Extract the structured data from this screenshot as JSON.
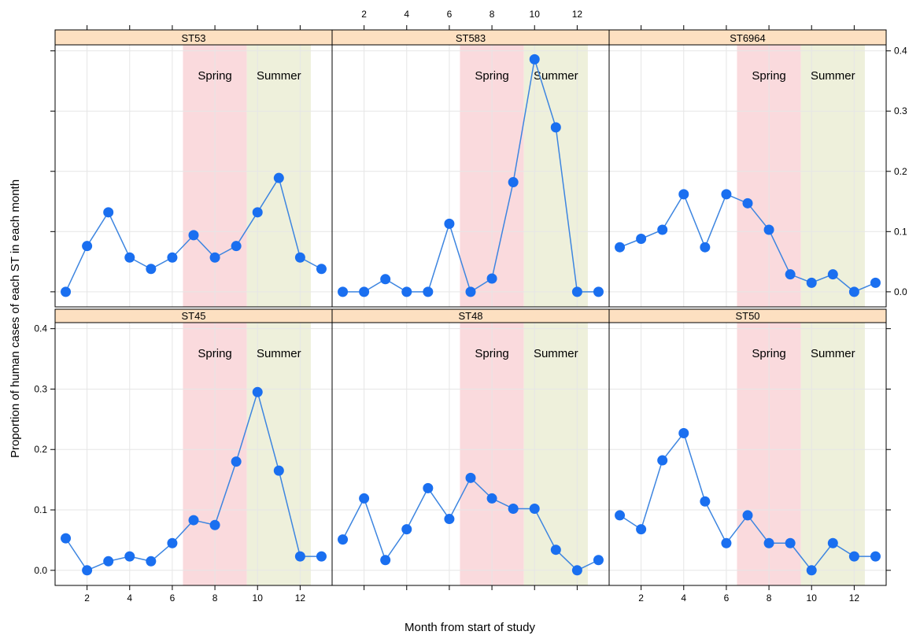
{
  "chart_data": {
    "type": "line",
    "layout": "lattice-3x2",
    "xlabel": "Month from start of study",
    "ylabel": "Proportion of human cases of each ST in each month",
    "xlim": [
      0.5,
      13.5
    ],
    "ylim": [
      -0.025,
      0.41
    ],
    "x_ticks": [
      2,
      4,
      6,
      8,
      10,
      12
    ],
    "x_tick_labels": [
      "2",
      "4",
      "6",
      "8",
      "10",
      "12"
    ],
    "y_ticks": [
      0.0,
      0.1,
      0.2,
      0.3,
      0.4
    ],
    "y_tick_labels": [
      "0.0",
      "0.1",
      "0.2",
      "0.3",
      "0.4"
    ],
    "grid": true,
    "colors": {
      "line": "#3d85e0",
      "point": "#1a6ff0",
      "strip": "#fde0c1",
      "spring": "#fadadd",
      "summer": "#eef0db",
      "grid": "#e6e6e6"
    },
    "seasons": [
      {
        "label": "Spring",
        "from": 6.5,
        "to": 9.5,
        "color": "#fadadd"
      },
      {
        "label": "Summer",
        "from": 9.5,
        "to": 12.5,
        "color": "#eef0db"
      }
    ],
    "x": [
      1,
      2,
      3,
      4,
      5,
      6,
      7,
      8,
      9,
      10,
      11,
      12,
      13
    ],
    "panels": [
      {
        "name": "ST53",
        "row": 0,
        "col": 0,
        "values": [
          0.0,
          0.076,
          0.132,
          0.057,
          0.038,
          0.057,
          0.094,
          0.057,
          0.076,
          0.132,
          0.189,
          0.057,
          0.038
        ]
      },
      {
        "name": "ST583",
        "row": 0,
        "col": 1,
        "values": [
          0.0,
          0.0,
          0.021,
          0.0,
          0.0,
          0.113,
          0.0,
          0.022,
          0.182,
          0.386,
          0.273,
          0.0,
          0.0
        ]
      },
      {
        "name": "ST6964",
        "row": 0,
        "col": 2,
        "values": [
          0.074,
          0.088,
          0.103,
          0.162,
          0.074,
          0.162,
          0.147,
          0.103,
          0.029,
          0.015,
          0.029,
          0.0,
          0.015
        ]
      },
      {
        "name": "ST45",
        "row": 1,
        "col": 0,
        "values": [
          0.053,
          0.0,
          0.015,
          0.023,
          0.015,
          0.045,
          0.083,
          0.075,
          0.18,
          0.295,
          0.165,
          0.023,
          0.023
        ]
      },
      {
        "name": "ST48",
        "row": 1,
        "col": 1,
        "values": [
          0.051,
          0.119,
          0.017,
          0.068,
          0.136,
          0.085,
          0.153,
          0.119,
          0.102,
          0.102,
          0.034,
          0.0,
          0.017
        ]
      },
      {
        "name": "ST50",
        "row": 1,
        "col": 2,
        "values": [
          0.091,
          0.068,
          0.182,
          0.227,
          0.114,
          0.045,
          0.091,
          0.045,
          0.045,
          0.0,
          0.045,
          0.023,
          0.023
        ]
      }
    ]
  }
}
